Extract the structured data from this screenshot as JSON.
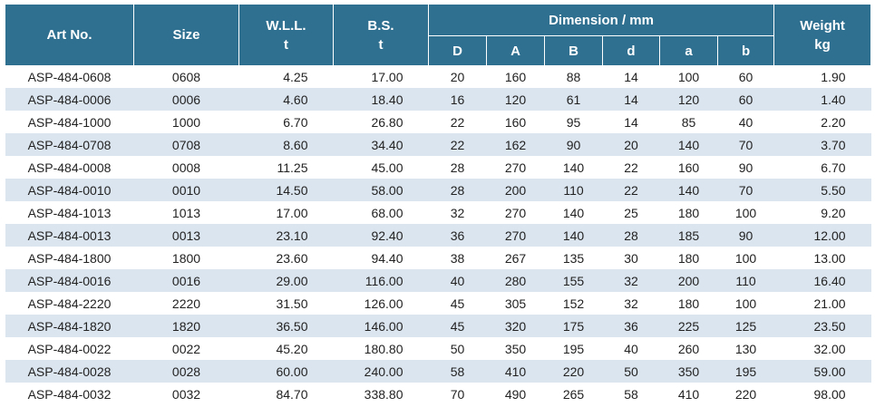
{
  "header": {
    "art_no": "Art No.",
    "size": "Size",
    "wll": "W.L.L.",
    "wll_unit": "t",
    "bs": "B.S.",
    "bs_unit": "t",
    "dimension": "Dimension / mm",
    "dim_cols": [
      "D",
      "A",
      "B",
      "d",
      "a",
      "b"
    ],
    "weight": "Weight",
    "weight_unit": "kg"
  },
  "table": {
    "rows": [
      [
        "ASP-484-0608",
        "0608",
        "4.25",
        "17.00",
        "20",
        "160",
        "88",
        "14",
        "100",
        "60",
        "1.90"
      ],
      [
        "ASP-484-0006",
        "0006",
        "4.60",
        "18.40",
        "16",
        "120",
        "61",
        "14",
        "120",
        "60",
        "1.40"
      ],
      [
        "ASP-484-1000",
        "1000",
        "6.70",
        "26.80",
        "22",
        "160",
        "95",
        "14",
        "85",
        "40",
        "2.20"
      ],
      [
        "ASP-484-0708",
        "0708",
        "8.60",
        "34.40",
        "22",
        "162",
        "90",
        "20",
        "140",
        "70",
        "3.70"
      ],
      [
        "ASP-484-0008",
        "0008",
        "11.25",
        "45.00",
        "28",
        "270",
        "140",
        "22",
        "160",
        "90",
        "6.70"
      ],
      [
        "ASP-484-0010",
        "0010",
        "14.50",
        "58.00",
        "28",
        "200",
        "110",
        "22",
        "140",
        "70",
        "5.50"
      ],
      [
        "ASP-484-1013",
        "1013",
        "17.00",
        "68.00",
        "32",
        "270",
        "140",
        "25",
        "180",
        "100",
        "9.20"
      ],
      [
        "ASP-484-0013",
        "0013",
        "23.10",
        "92.40",
        "36",
        "270",
        "140",
        "28",
        "185",
        "90",
        "12.00"
      ],
      [
        "ASP-484-1800",
        "1800",
        "23.60",
        "94.40",
        "38",
        "267",
        "135",
        "30",
        "180",
        "100",
        "13.00"
      ],
      [
        "ASP-484-0016",
        "0016",
        "29.00",
        "116.00",
        "40",
        "280",
        "155",
        "32",
        "200",
        "110",
        "16.40"
      ],
      [
        "ASP-484-2220",
        "2220",
        "31.50",
        "126.00",
        "45",
        "305",
        "152",
        "32",
        "180",
        "100",
        "21.00"
      ],
      [
        "ASP-484-1820",
        "1820",
        "36.50",
        "146.00",
        "45",
        "320",
        "175",
        "36",
        "225",
        "125",
        "23.50"
      ],
      [
        "ASP-484-0022",
        "0022",
        "45.20",
        "180.80",
        "50",
        "350",
        "195",
        "40",
        "260",
        "130",
        "32.00"
      ],
      [
        "ASP-484-0028",
        "0028",
        "60.00",
        "240.00",
        "58",
        "410",
        "220",
        "50",
        "350",
        "195",
        "59.00"
      ],
      [
        "ASP-484-0032",
        "0032",
        "84.70",
        "338.80",
        "70",
        "490",
        "265",
        "58",
        "410",
        "220",
        "98.00"
      ]
    ]
  }
}
